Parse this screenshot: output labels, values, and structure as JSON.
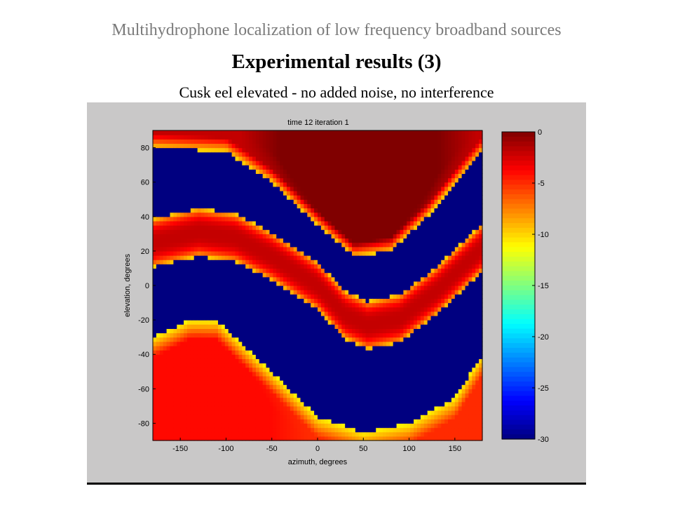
{
  "slide": {
    "series_title": "Multihydrophone localization of low frequency broadband sources",
    "title": "Experimental results (3)",
    "subtitle": "Cusk eel elevated - no added noise, no interference"
  },
  "chart_data": {
    "type": "heatmap",
    "title": "time 12 iteration 1",
    "xlabel": "azimuth, degrees",
    "ylabel": "elevation, degrees",
    "xlim": [
      -180,
      180
    ],
    "ylim": [
      -90,
      90
    ],
    "xticks": [
      -150,
      -100,
      -50,
      0,
      50,
      100,
      150
    ],
    "yticks": [
      -80,
      -60,
      -40,
      -20,
      0,
      20,
      40,
      60,
      80
    ],
    "colormap": "jet",
    "colorbar": {
      "range": [
        -30,
        0
      ],
      "ticks": [
        0,
        -5,
        -10,
        -15,
        -20,
        -25,
        -30
      ]
    },
    "colors": {
      "figure_background": "#c9c8c8",
      "low_value": "#00008f",
      "high_value": "#800000"
    },
    "bands": [
      {
        "feature": "top lobe",
        "peak_dB": 0,
        "az_center": 45,
        "lower_edge_el": [
          [
            -180,
            80
          ],
          [
            -100,
            78
          ],
          [
            -50,
            60
          ],
          [
            0,
            35
          ],
          [
            40,
            17
          ],
          [
            80,
            20
          ],
          [
            120,
            40
          ],
          [
            180,
            78
          ]
        ]
      },
      {
        "feature": "middle band",
        "peak_dB": -2,
        "center_el": [
          [
            -180,
            25
          ],
          [
            -130,
            31
          ],
          [
            -90,
            28
          ],
          [
            -50,
            17
          ],
          [
            0,
            0
          ],
          [
            30,
            -17
          ],
          [
            55,
            -23
          ],
          [
            90,
            -19
          ],
          [
            130,
            -3
          ],
          [
            180,
            22
          ]
        ],
        "half_width_el": 14
      },
      {
        "feature": "bottom lobe",
        "peak_dB": -4,
        "az_center": -130,
        "upper_edge_el": [
          [
            -180,
            -30
          ],
          [
            -140,
            -20
          ],
          [
            -110,
            -20
          ],
          [
            -60,
            -45
          ],
          [
            0,
            -76
          ],
          [
            50,
            -85
          ],
          [
            100,
            -80
          ],
          [
            150,
            -65
          ],
          [
            180,
            -40
          ]
        ]
      }
    ]
  }
}
